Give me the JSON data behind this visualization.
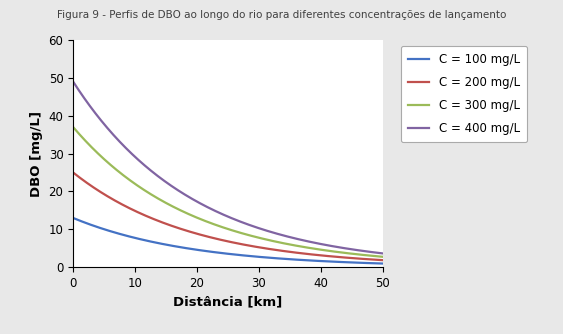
{
  "title": "Figura 9 - Perfis de DBO ao longo do rio para diferentes concentrações de lançamento",
  "xlabel": "Distância [km]",
  "ylabel": "DBO [mg/L]",
  "xlim": [
    0,
    50
  ],
  "ylim": [
    0,
    60
  ],
  "xticks": [
    0,
    10,
    20,
    30,
    40,
    50
  ],
  "yticks": [
    0,
    10,
    20,
    30,
    40,
    50,
    60
  ],
  "series": [
    {
      "label": "C = 100 mg/L",
      "color": "#4472C4",
      "C0": 13.0,
      "k": 0.052
    },
    {
      "label": "C = 200 mg/L",
      "color": "#C0504D",
      "C0": 25.0,
      "k": 0.052
    },
    {
      "label": "C = 300 mg/L",
      "color": "#9BBB59",
      "C0": 37.0,
      "k": 0.052
    },
    {
      "label": "C = 400 mg/L",
      "color": "#8064A2",
      "C0": 49.0,
      "k": 0.052
    }
  ],
  "background_color": "#FFFFFF",
  "figure_bg": "#E8E8E8",
  "title_fontsize": 7.5,
  "axis_label_fontsize": 9.5,
  "tick_fontsize": 8.5,
  "legend_fontsize": 8.5,
  "linewidth": 1.6
}
